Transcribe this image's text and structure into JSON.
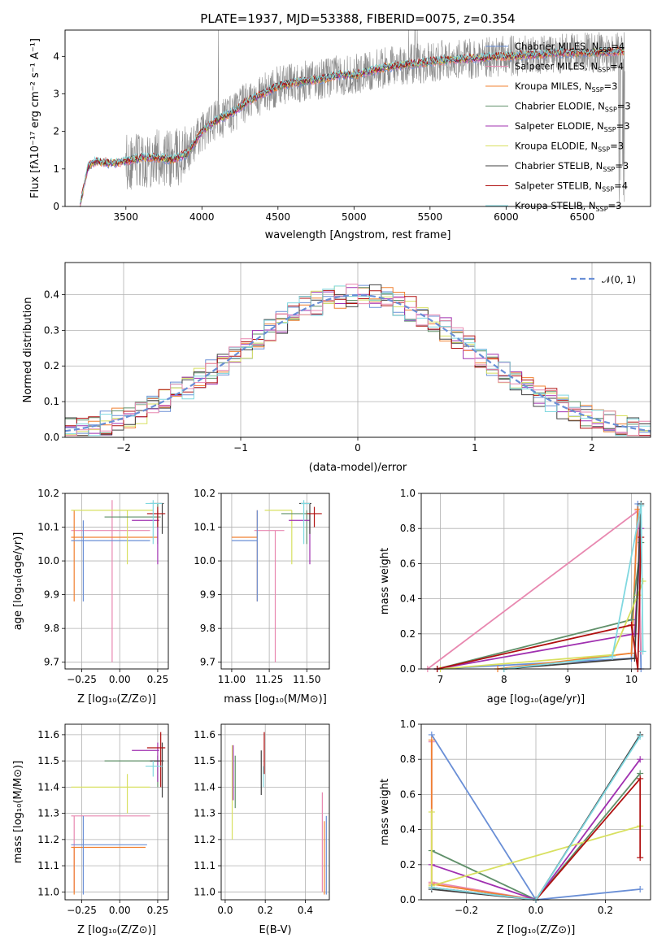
{
  "figure_title": "PLATE=1937, MJD=53388, FIBERID=0075, z=0.354",
  "colors": [
    "#8c8c8c",
    "#6a8fd6",
    "#f08030",
    "#60906a",
    "#a030b0",
    "#d8e060",
    "#404040",
    "#b01010",
    "#80d8e0",
    "#e888b0"
  ],
  "chart_data": [
    {
      "id": "spectrum",
      "type": "line",
      "title": "PLATE=1937, MJD=53388, FIBERID=0075, z=0.354",
      "xlabel": "wavelength [Angstrom, rest frame]",
      "ylabel": "Flux [f_λ 10^-17 erg cm^-2 s^-1 A^-1]",
      "xlim": [
        3100,
        6950
      ],
      "ylim": [
        0,
        4.7
      ],
      "xticks": [
        "3500",
        "4000",
        "4500",
        "5000",
        "5500",
        "6000",
        "6500"
      ],
      "yticks": [
        "0",
        "1",
        "2",
        "3",
        "4"
      ],
      "grid": false,
      "legend_position": "top-right",
      "series": [
        {
          "name": "Chabrier MILES, N_SSP=4",
          "color": "#6a8fd6"
        },
        {
          "name": "Salpeter MILES, N_SSP=4",
          "color": "#e888b0"
        },
        {
          "name": "Kroupa MILES, N_SSP=3",
          "color": "#f08030"
        },
        {
          "name": "Chabrier ELODIE, N_SSP=3",
          "color": "#60906a"
        },
        {
          "name": "Salpeter ELODIE, N_SSP=3",
          "color": "#a030b0"
        },
        {
          "name": "Kroupa ELODIE, N_SSP=3",
          "color": "#d8e060"
        },
        {
          "name": "Chabrier STELIB, N_SSP=3",
          "color": "#404040"
        },
        {
          "name": "Salpeter STELIB, N_SSP=4",
          "color": "#b01010"
        },
        {
          "name": "Kroupa STELIB, N_SSP=3",
          "color": "#80d8e0"
        }
      ],
      "continuum": {
        "x": [
          3200,
          3250,
          3300,
          3400,
          3500,
          3600,
          3700,
          3800,
          3900,
          4000,
          4100,
          4200,
          4300,
          4400,
          4500,
          4600,
          4700,
          4800,
          4900,
          5000,
          5200,
          5400,
          5600,
          5800,
          6000,
          6200,
          6400,
          6600,
          6800,
          6950
        ],
        "y": [
          0.05,
          1.05,
          1.2,
          1.15,
          1.2,
          1.3,
          1.3,
          1.25,
          1.4,
          2.0,
          2.3,
          2.5,
          2.8,
          3.0,
          3.2,
          3.3,
          3.35,
          3.4,
          3.5,
          3.5,
          3.7,
          3.8,
          3.9,
          3.95,
          4.0,
          4.05,
          4.1,
          4.1,
          4.15,
          4.2
        ]
      }
    },
    {
      "id": "residuals",
      "type": "line",
      "xlabel": "(data-model)/error",
      "ylabel": "Normed distribution",
      "xlim": [
        -2.5,
        2.5
      ],
      "ylim": [
        0,
        0.49
      ],
      "xticks": [
        "−2",
        "−1",
        "0",
        "1",
        "2"
      ],
      "yticks": [
        "0.0",
        "0.1",
        "0.2",
        "0.3",
        "0.4"
      ],
      "grid": true,
      "legend_position": "top-right",
      "legend": "𝒩(0, 1)",
      "gaussian": {
        "mu": 0,
        "sigma": 1,
        "color": "#6a8fd6"
      },
      "histogram_bin_width": 0.1
    },
    {
      "id": "age-vs-z",
      "type": "scatter",
      "xlabel": "Z [log10(Z/Z⊙)]",
      "ylabel": "age  [log10(age/yr)]",
      "xlim": [
        -0.36,
        0.32
      ],
      "ylim": [
        9.68,
        10.2
      ],
      "xticks": [
        "−0.25",
        "0.00",
        "0.25"
      ],
      "yticks": [
        "9.7",
        "9.8",
        "9.9",
        "10.0",
        "10.1",
        "10.2"
      ],
      "grid": true,
      "errorbars": [
        {
          "x": [
            -0.32,
            0.2
          ],
          "y": [
            9.7,
            10.18
          ],
          "cx": -0.05,
          "cy": 10.09,
          "color": "#e888b0"
        },
        {
          "x": [
            -0.32,
            0.25
          ],
          "y": [
            9.88,
            10.15
          ],
          "cx": -0.3,
          "cy": 10.07,
          "color": "#f08030"
        },
        {
          "x": [
            -0.32,
            0.2
          ],
          "y": [
            9.88,
            10.12
          ],
          "cx": -0.24,
          "cy": 10.06,
          "color": "#6a8fd6"
        },
        {
          "x": [
            -0.32,
            0.22
          ],
          "y": [
            9.99,
            10.15
          ],
          "cx": 0.05,
          "cy": 10.15,
          "color": "#d8e060"
        },
        {
          "x": [
            -0.1,
            0.27
          ],
          "y": [
            10.05,
            10.17
          ],
          "cx": 0.25,
          "cy": 10.13,
          "color": "#60906a"
        },
        {
          "x": [
            0.08,
            0.26
          ],
          "y": [
            9.99,
            10.15
          ],
          "cx": 0.25,
          "cy": 10.12,
          "color": "#a030b0"
        },
        {
          "x": [
            0.2,
            0.29
          ],
          "y": [
            10.08,
            10.17
          ],
          "cx": 0.28,
          "cy": 10.17,
          "color": "#404040"
        },
        {
          "x": [
            0.18,
            0.3
          ],
          "y": [
            10.1,
            10.16
          ],
          "cx": 0.25,
          "cy": 10.14,
          "color": "#b01010"
        },
        {
          "x": [
            0.17,
            0.28
          ],
          "y": [
            10.05,
            10.18
          ],
          "cx": 0.22,
          "cy": 10.17,
          "color": "#80d8e0"
        }
      ]
    },
    {
      "id": "age-vs-mass",
      "type": "scatter",
      "xlabel": "mass [log10(M/M⊙)]",
      "ylabel": "",
      "xlim": [
        10.93,
        11.65
      ],
      "ylim": [
        9.68,
        10.2
      ],
      "xticks": [
        "11.00",
        "11.25",
        "11.50"
      ],
      "yticks": [
        "9.7",
        "9.8",
        "9.9",
        "10.0",
        "10.1",
        "10.2"
      ],
      "grid": true,
      "errorbars": [
        {
          "x": [
            11.15,
            11.35
          ],
          "y": [
            9.7,
            10.09
          ],
          "cx": 11.29,
          "cy": 10.09,
          "color": "#e888b0"
        },
        {
          "x": [
            11.0,
            11.17
          ],
          "y": [
            9.88,
            10.15
          ],
          "cx": 11.17,
          "cy": 10.07,
          "color": "#f08030"
        },
        {
          "x": [
            11.0,
            11.17
          ],
          "y": [
            9.88,
            10.15
          ],
          "cx": 11.17,
          "cy": 10.06,
          "color": "#6a8fd6"
        },
        {
          "x": [
            11.22,
            11.4
          ],
          "y": [
            9.99,
            10.15
          ],
          "cx": 11.4,
          "cy": 10.15,
          "color": "#d8e060"
        },
        {
          "x": [
            11.33,
            11.52
          ],
          "y": [
            10.05,
            10.15
          ],
          "cx": 11.5,
          "cy": 10.14,
          "color": "#60906a"
        },
        {
          "x": [
            11.38,
            11.52
          ],
          "y": [
            9.99,
            10.14
          ],
          "cx": 11.52,
          "cy": 10.12,
          "color": "#a030b0"
        },
        {
          "x": [
            11.45,
            11.53
          ],
          "y": [
            10.08,
            10.17
          ],
          "cx": 11.52,
          "cy": 10.17,
          "color": "#404040"
        },
        {
          "x": [
            11.5,
            11.6
          ],
          "y": [
            10.1,
            10.16
          ],
          "cx": 11.55,
          "cy": 10.14,
          "color": "#b01010"
        },
        {
          "x": [
            11.46,
            11.52
          ],
          "y": [
            10.05,
            10.18
          ],
          "cx": 11.48,
          "cy": 10.17,
          "color": "#80d8e0"
        }
      ]
    },
    {
      "id": "weight-vs-age",
      "type": "line",
      "xlabel": "age  [log10(age/yr)]",
      "ylabel": "mass weight",
      "xlim": [
        6.7,
        10.3
      ],
      "ylim": [
        0,
        1
      ],
      "xticks": [
        "7",
        "8",
        "9",
        "10"
      ],
      "yticks": [
        "0.0",
        "0.2",
        "0.4",
        "0.6",
        "0.8",
        "1.0"
      ],
      "grid": true,
      "series": [
        {
          "color": "#6a8fd6",
          "points": [
            [
              6.95,
              0.0
            ],
            [
              10.0,
              0.06
            ],
            [
              10.1,
              0.94
            ],
            [
              10.15,
              0.0
            ]
          ]
        },
        {
          "color": "#e888b0",
          "points": [
            [
              6.8,
              0.0
            ],
            [
              10.1,
              0.9
            ],
            [
              10.15,
              0.1
            ]
          ]
        },
        {
          "color": "#f08030",
          "points": [
            [
              7.9,
              0.0
            ],
            [
              10.0,
              0.09
            ],
            [
              10.1,
              0.91
            ]
          ]
        },
        {
          "color": "#60906a",
          "points": [
            [
              6.95,
              0.0
            ],
            [
              10.0,
              0.28
            ],
            [
              10.15,
              0.72
            ]
          ]
        },
        {
          "color": "#a030b0",
          "points": [
            [
              6.95,
              0.0
            ],
            [
              10.05,
              0.2
            ],
            [
              10.15,
              0.8
            ]
          ]
        },
        {
          "color": "#d8e060",
          "points": [
            [
              7.0,
              0.0
            ],
            [
              9.7,
              0.08
            ],
            [
              10.1,
              0.42
            ],
            [
              10.18,
              0.5
            ]
          ]
        },
        {
          "color": "#404040",
          "points": [
            [
              8.0,
              0.0
            ],
            [
              10.05,
              0.06
            ],
            [
              10.15,
              0.94
            ]
          ]
        },
        {
          "color": "#b01010",
          "points": [
            [
              6.95,
              0.0
            ],
            [
              10.0,
              0.25
            ],
            [
              10.1,
              0.0
            ],
            [
              10.15,
              0.75
            ]
          ]
        },
        {
          "color": "#80d8e0",
          "points": [
            [
              8.0,
              0.0
            ],
            [
              9.7,
              0.07
            ],
            [
              10.15,
              0.93
            ],
            [
              10.18,
              0.1
            ]
          ]
        }
      ]
    },
    {
      "id": "mass-vs-z",
      "type": "scatter",
      "xlabel": "Z [log10(Z/Z⊙)]",
      "ylabel": "mass [log10(M/M⊙)]",
      "xlim": [
        -0.36,
        0.32
      ],
      "ylim": [
        10.97,
        11.64
      ],
      "xticks": [
        "−0.25",
        "0.00",
        "0.25"
      ],
      "yticks": [
        "11.0",
        "11.1",
        "11.2",
        "11.3",
        "11.4",
        "11.5",
        "11.6"
      ],
      "grid": true,
      "errorbars": [
        {
          "x": [
            -0.32,
            0.2
          ],
          "y": [
            11.0,
            11.29
          ],
          "cx": -0.3,
          "cy": 11.29,
          "color": "#e888b0"
        },
        {
          "x": [
            -0.32,
            0.17
          ],
          "y": [
            10.99,
            11.17
          ],
          "cx": -0.3,
          "cy": 11.17,
          "color": "#f08030"
        },
        {
          "x": [
            -0.32,
            0.18
          ],
          "y": [
            10.99,
            11.29
          ],
          "cx": -0.24,
          "cy": 11.18,
          "color": "#6a8fd6"
        },
        {
          "x": [
            -0.32,
            0.2
          ],
          "y": [
            11.3,
            11.45
          ],
          "cx": 0.05,
          "cy": 11.4,
          "color": "#d8e060"
        },
        {
          "x": [
            -0.1,
            0.27
          ],
          "y": [
            11.4,
            11.52
          ],
          "cx": 0.25,
          "cy": 11.5,
          "color": "#60906a"
        },
        {
          "x": [
            0.08,
            0.26
          ],
          "y": [
            11.42,
            11.57
          ],
          "cx": 0.25,
          "cy": 11.54,
          "color": "#a030b0"
        },
        {
          "x": [
            0.2,
            0.29
          ],
          "y": [
            11.36,
            11.57
          ],
          "cx": 0.28,
          "cy": 11.5,
          "color": "#404040"
        },
        {
          "x": [
            0.18,
            0.3
          ],
          "y": [
            11.4,
            11.61
          ],
          "cx": 0.27,
          "cy": 11.55,
          "color": "#b01010"
        },
        {
          "x": [
            0.17,
            0.28
          ],
          "y": [
            11.44,
            11.5
          ],
          "cx": 0.22,
          "cy": 11.48,
          "color": "#80d8e0"
        }
      ]
    },
    {
      "id": "mass-vs-ebv",
      "type": "scatter",
      "xlabel": "E(B-V)",
      "ylabel": "",
      "xlim": [
        -0.02,
        0.52
      ],
      "ylim": [
        10.97,
        11.64
      ],
      "xticks": [
        "0.0",
        "0.2",
        "0.4"
      ],
      "yticks": [
        "11.0",
        "11.1",
        "11.2",
        "11.3",
        "11.4",
        "11.5",
        "11.6"
      ],
      "grid": true,
      "errorbars": [
        {
          "x": [
            0.485,
            0.485
          ],
          "y": [
            11.0,
            11.38
          ],
          "cx": 0.485,
          "cy": 11.2,
          "color": "#e888b0"
        },
        {
          "x": [
            0.495,
            0.495
          ],
          "y": [
            10.99,
            11.27
          ],
          "cx": 0.495,
          "cy": 11.15,
          "color": "#f08030"
        },
        {
          "x": [
            0.505,
            0.505
          ],
          "y": [
            10.99,
            11.29
          ],
          "cx": 0.505,
          "cy": 11.15,
          "color": "#6a8fd6"
        },
        {
          "x": [
            0.035,
            0.035
          ],
          "y": [
            11.2,
            11.56
          ],
          "cx": 0.035,
          "cy": 11.4,
          "color": "#d8e060"
        },
        {
          "x": [
            0.05,
            0.05
          ],
          "y": [
            11.32,
            11.52
          ],
          "cx": 0.05,
          "cy": 11.4,
          "color": "#60906a"
        },
        {
          "x": [
            0.04,
            0.04
          ],
          "y": [
            11.35,
            11.56
          ],
          "cx": 0.04,
          "cy": 11.45,
          "color": "#a030b0"
        },
        {
          "x": [
            0.18,
            0.18
          ],
          "y": [
            11.37,
            11.54
          ],
          "cx": 0.18,
          "cy": 11.45,
          "color": "#404040"
        },
        {
          "x": [
            0.195,
            0.195
          ],
          "y": [
            11.45,
            11.61
          ],
          "cx": 0.195,
          "cy": 11.5,
          "color": "#b01010"
        },
        {
          "x": [
            0.19,
            0.19
          ],
          "y": [
            11.4,
            11.48
          ],
          "cx": 0.19,
          "cy": 11.45,
          "color": "#80d8e0"
        }
      ]
    },
    {
      "id": "weight-vs-z",
      "type": "line",
      "xlabel": "Z [log10(Z/Z⊙)]",
      "ylabel": "mass weight",
      "xlim": [
        -0.33,
        0.33
      ],
      "ylim": [
        0,
        1
      ],
      "xticks": [
        "−0.2",
        "0.0",
        "0.2"
      ],
      "yticks": [
        "0.0",
        "0.2",
        "0.4",
        "0.6",
        "0.8",
        "1.0"
      ],
      "grid": true,
      "series": [
        {
          "color": "#6a8fd6",
          "points": [
            [
              -0.3,
              0.94
            ],
            [
              0.0,
              0.0
            ],
            [
              0.3,
              0.06
            ]
          ]
        },
        {
          "color": "#e888b0",
          "points": [
            [
              -0.3,
              0.9
            ],
            [
              -0.3,
              0.1
            ],
            [
              0.0,
              0.0
            ]
          ]
        },
        {
          "color": "#f08030",
          "points": [
            [
              -0.3,
              0.91
            ],
            [
              -0.3,
              0.09
            ],
            [
              0.0,
              0.0
            ]
          ]
        },
        {
          "color": "#60906a",
          "points": [
            [
              -0.3,
              0.28
            ],
            [
              0.0,
              0.0
            ],
            [
              0.3,
              0.72
            ]
          ]
        },
        {
          "color": "#a030b0",
          "points": [
            [
              -0.3,
              0.2
            ],
            [
              0.0,
              0.0
            ],
            [
              0.3,
              0.8
            ]
          ]
        },
        {
          "color": "#d8e060",
          "points": [
            [
              -0.3,
              0.5
            ],
            [
              -0.3,
              0.08
            ],
            [
              0.3,
              0.42
            ]
          ]
        },
        {
          "color": "#404040",
          "points": [
            [
              -0.3,
              0.06
            ],
            [
              0.0,
              0.0
            ],
            [
              0.3,
              0.94
            ]
          ]
        },
        {
          "color": "#b01010",
          "points": [
            [
              -0.3,
              0.07
            ],
            [
              0.0,
              0.0
            ],
            [
              0.3,
              0.69
            ],
            [
              0.3,
              0.24
            ]
          ]
        },
        {
          "color": "#80d8e0",
          "points": [
            [
              -0.3,
              0.07
            ],
            [
              0.0,
              0.0
            ],
            [
              0.3,
              0.93
            ]
          ]
        }
      ]
    }
  ]
}
